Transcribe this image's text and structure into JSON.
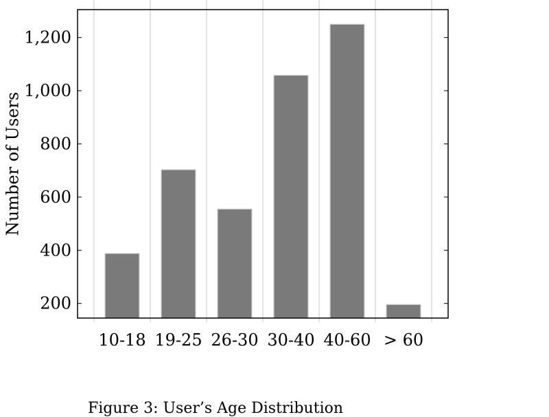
{
  "chart_data": {
    "type": "bar",
    "categories": [
      "10-18",
      "19-25",
      "26-30",
      "30-40",
      "40-60",
      "> 60"
    ],
    "values": [
      388,
      703,
      555,
      1058,
      1250,
      196
    ],
    "title": "",
    "xlabel": "",
    "ylabel": "Number of Users",
    "ylim": [
      145,
      1305
    ],
    "yticks": [
      200,
      400,
      600,
      800,
      1000,
      1200
    ],
    "ytick_labels": [
      "200",
      "400",
      "600",
      "800",
      "1,000",
      "1,200"
    ],
    "grid": "vertical",
    "bar_color": "#7a7a7a"
  },
  "caption": "Figure 3:  User’s Age Distribution"
}
